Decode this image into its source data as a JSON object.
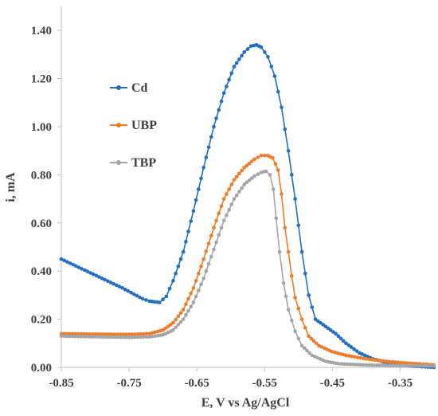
{
  "chart_data": {
    "type": "scatter",
    "xlabel": "E, V vs Ag/AgCl",
    "ylabel": "i, mA",
    "xlim": [
      -0.85,
      -0.3
    ],
    "ylim": [
      0,
      1.5
    ],
    "x_ticks": [
      -0.85,
      -0.75,
      -0.65,
      -0.55,
      -0.45,
      -0.35
    ],
    "x_tick_labels": [
      "-0.85",
      "-0.75",
      "-0.65",
      "-0.55",
      "-0.45",
      "-0.35"
    ],
    "y_ticks": [
      0,
      0.2,
      0.4,
      0.6,
      0.8,
      1.0,
      1.2,
      1.4
    ],
    "y_tick_labels": [
      "0.00",
      "0.20",
      "0.40",
      "0.60",
      "0.80",
      "1.00",
      "1.20",
      "1.40"
    ],
    "grid": false,
    "legend_position": "top-left (inside plot)",
    "series": [
      {
        "name": "Cd",
        "color": "#1f6fc5",
        "points": [
          [
            -0.85,
            0.45
          ],
          [
            -0.82,
            0.41
          ],
          [
            -0.79,
            0.37
          ],
          [
            -0.76,
            0.33
          ],
          [
            -0.73,
            0.285
          ],
          [
            -0.72,
            0.275
          ],
          [
            -0.705,
            0.27
          ],
          [
            -0.695,
            0.295
          ],
          [
            -0.685,
            0.36
          ],
          [
            -0.67,
            0.48
          ],
          [
            -0.655,
            0.65
          ],
          [
            -0.64,
            0.83
          ],
          [
            -0.625,
            1.0
          ],
          [
            -0.61,
            1.14
          ],
          [
            -0.595,
            1.25
          ],
          [
            -0.58,
            1.31
          ],
          [
            -0.57,
            1.335
          ],
          [
            -0.562,
            1.34
          ],
          [
            -0.555,
            1.33
          ],
          [
            -0.545,
            1.29
          ],
          [
            -0.535,
            1.21
          ],
          [
            -0.525,
            1.08
          ],
          [
            -0.515,
            0.9
          ],
          [
            -0.505,
            0.7
          ],
          [
            -0.495,
            0.48
          ],
          [
            -0.485,
            0.3
          ],
          [
            -0.475,
            0.2
          ],
          [
            -0.46,
            0.17
          ],
          [
            -0.445,
            0.14
          ],
          [
            -0.43,
            0.1
          ],
          [
            -0.41,
            0.06
          ],
          [
            -0.39,
            0.035
          ],
          [
            -0.37,
            0.02
          ],
          [
            -0.35,
            0.01
          ],
          [
            -0.33,
            0.005
          ],
          [
            -0.3,
            0.0
          ]
        ]
      },
      {
        "name": "UBP",
        "color": "#f07c28",
        "points": [
          [
            -0.85,
            0.14
          ],
          [
            -0.8,
            0.138
          ],
          [
            -0.75,
            0.137
          ],
          [
            -0.72,
            0.14
          ],
          [
            -0.7,
            0.155
          ],
          [
            -0.685,
            0.185
          ],
          [
            -0.67,
            0.24
          ],
          [
            -0.655,
            0.33
          ],
          [
            -0.64,
            0.45
          ],
          [
            -0.625,
            0.58
          ],
          [
            -0.61,
            0.7
          ],
          [
            -0.595,
            0.78
          ],
          [
            -0.58,
            0.83
          ],
          [
            -0.565,
            0.865
          ],
          [
            -0.555,
            0.88
          ],
          [
            -0.545,
            0.88
          ],
          [
            -0.538,
            0.87
          ],
          [
            -0.53,
            0.82
          ],
          [
            -0.525,
            0.72
          ],
          [
            -0.52,
            0.58
          ],
          [
            -0.515,
            0.48
          ],
          [
            -0.51,
            0.38
          ],
          [
            -0.505,
            0.29
          ],
          [
            -0.495,
            0.2
          ],
          [
            -0.485,
            0.13
          ],
          [
            -0.47,
            0.09
          ],
          [
            -0.45,
            0.065
          ],
          [
            -0.43,
            0.05
          ],
          [
            -0.4,
            0.035
          ],
          [
            -0.37,
            0.025
          ],
          [
            -0.34,
            0.018
          ],
          [
            -0.3,
            0.01
          ]
        ]
      },
      {
        "name": "TBP",
        "color": "#a5a5a5",
        "points": [
          [
            -0.85,
            0.13
          ],
          [
            -0.8,
            0.127
          ],
          [
            -0.75,
            0.125
          ],
          [
            -0.72,
            0.127
          ],
          [
            -0.7,
            0.135
          ],
          [
            -0.685,
            0.155
          ],
          [
            -0.67,
            0.2
          ],
          [
            -0.655,
            0.27
          ],
          [
            -0.64,
            0.37
          ],
          [
            -0.625,
            0.49
          ],
          [
            -0.61,
            0.61
          ],
          [
            -0.595,
            0.7
          ],
          [
            -0.58,
            0.76
          ],
          [
            -0.565,
            0.795
          ],
          [
            -0.555,
            0.81
          ],
          [
            -0.548,
            0.815
          ],
          [
            -0.542,
            0.8
          ],
          [
            -0.537,
            0.74
          ],
          [
            -0.533,
            0.62
          ],
          [
            -0.528,
            0.48
          ],
          [
            -0.522,
            0.35
          ],
          [
            -0.515,
            0.24
          ],
          [
            -0.505,
            0.15
          ],
          [
            -0.495,
            0.09
          ],
          [
            -0.48,
            0.05
          ],
          [
            -0.46,
            0.025
          ],
          [
            -0.44,
            0.015
          ],
          [
            -0.4,
            0.01
          ],
          [
            -0.36,
            0.008
          ],
          [
            -0.3,
            0.006
          ]
        ]
      }
    ]
  }
}
